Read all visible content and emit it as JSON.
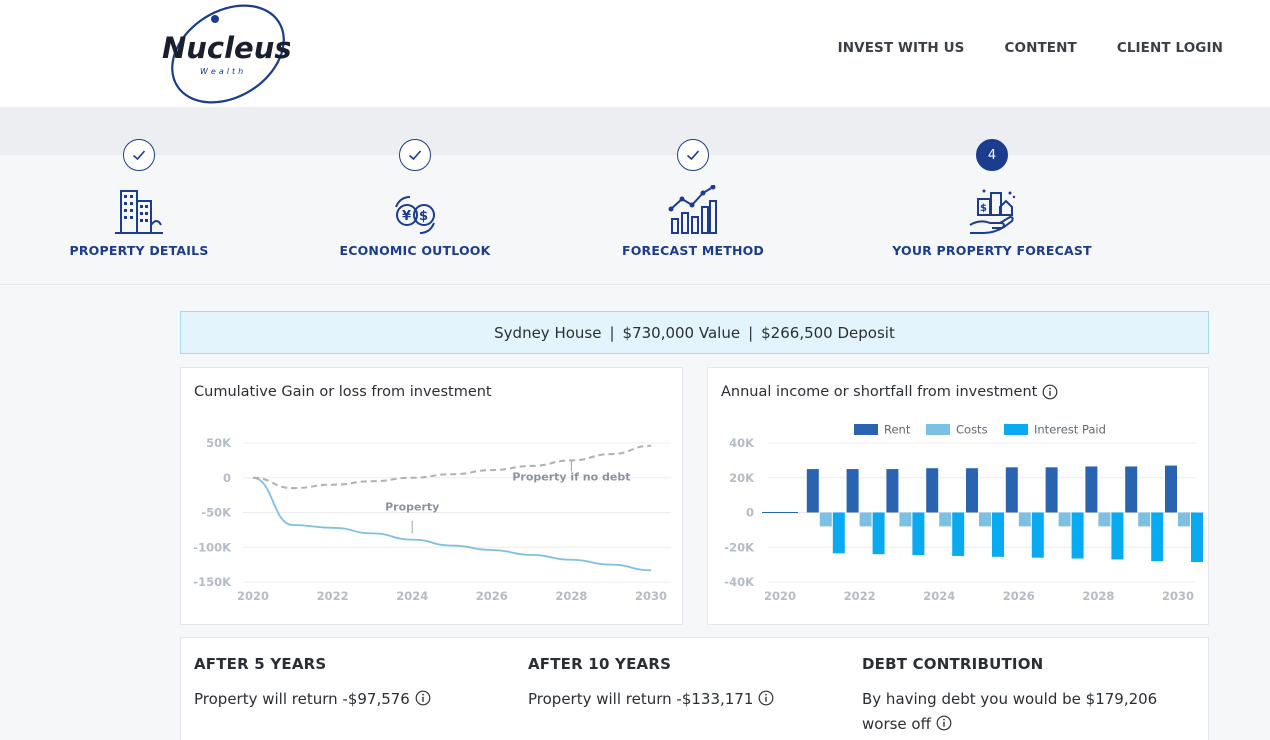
{
  "brand": {
    "name": "Nucleus",
    "sub": "Wealth"
  },
  "nav": {
    "items": [
      "INVEST WITH US",
      "CONTENT",
      "CLIENT LOGIN"
    ]
  },
  "steps": [
    {
      "label": "PROPERTY DETAILS",
      "status": "done",
      "icon": "buildings-icon"
    },
    {
      "label": "ECONOMIC OUTLOOK",
      "status": "done",
      "icon": "currency-exchange-icon"
    },
    {
      "label": "FORECAST METHOD",
      "status": "done",
      "icon": "growth-chart-icon"
    },
    {
      "label": "YOUR PROPERTY FORECAST",
      "status": "active",
      "number": "4",
      "icon": "money-hand-house-icon"
    }
  ],
  "summary": {
    "property": "Sydney House",
    "value": "$730,000 Value",
    "deposit": "$266,500 Deposit"
  },
  "colors": {
    "brand": "#1b3c8f",
    "rent": "#2a64b1",
    "costs": "#7ec0e4",
    "interest": "#0aaaf0",
    "property_line": "#7ec0e0",
    "no_debt_line": "#b0b0b0"
  },
  "charts": {
    "cumulative_title": "Cumulative Gain or loss from investment",
    "annual_title": "Annual income or shortfall from investment"
  },
  "chart_data": [
    {
      "type": "line",
      "title": "Cumulative Gain or loss from investment",
      "x": [
        2020,
        2021,
        2022,
        2023,
        2024,
        2025,
        2026,
        2027,
        2028,
        2029,
        2030
      ],
      "xticks": [
        "2020",
        "2022",
        "2024",
        "2026",
        "2028",
        "2030"
      ],
      "yticks": [
        "50K",
        "0",
        "-50K",
        "-100K",
        "-150K"
      ],
      "ylim": [
        -150000,
        50000
      ],
      "xlim": [
        2020,
        2030
      ],
      "series": [
        {
          "name": "Property",
          "values": [
            0,
            -68000,
            -72000,
            -80000,
            -89000,
            -97576,
            -104000,
            -111000,
            -118000,
            -125000,
            -133171
          ]
        },
        {
          "name": "Property if no debt",
          "values": [
            0,
            -15000,
            -10000,
            -5000,
            0,
            5000,
            11000,
            17000,
            25000,
            34000,
            46000
          ]
        }
      ]
    },
    {
      "type": "bar",
      "title": "Annual income or shortfall from investment",
      "categories": [
        2020,
        2021,
        2022,
        2023,
        2024,
        2025,
        2026,
        2027,
        2028,
        2029,
        2030
      ],
      "xticks": [
        "2020",
        "2022",
        "2024",
        "2026",
        "2028",
        "2030"
      ],
      "yticks": [
        "40K",
        "20K",
        "0",
        "-20K",
        "-40K"
      ],
      "ylim": [
        -40000,
        40000
      ],
      "legend": "top",
      "series": [
        {
          "name": "Rent",
          "values": [
            0,
            25000,
            25000,
            25000,
            25500,
            25500,
            26000,
            26000,
            26500,
            26500,
            27000
          ]
        },
        {
          "name": "Costs",
          "values": [
            0,
            -8000,
            -8000,
            -8000,
            -8000,
            -8000,
            -8000,
            -8000,
            -8000,
            -8000,
            -8000
          ]
        },
        {
          "name": "Interest Paid",
          "values": [
            0,
            -23500,
            -24000,
            -24500,
            -25000,
            -25500,
            -26000,
            -26500,
            -27000,
            -28000,
            -28500
          ]
        }
      ]
    }
  ],
  "results": {
    "after5": {
      "heading": "AFTER 5 YEARS",
      "text": "Property will return -$97,576"
    },
    "after10": {
      "heading": "AFTER 10 YEARS",
      "text": "Property will return -$133,171"
    },
    "debt": {
      "heading": "DEBT CONTRIBUTION",
      "text": "By having debt you would be $179,206 worse off"
    }
  }
}
